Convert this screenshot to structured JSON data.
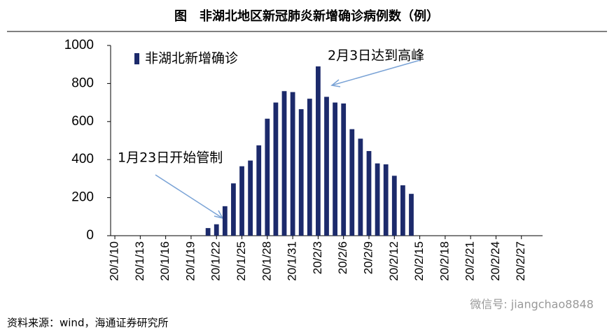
{
  "chart_data": {
    "type": "bar",
    "title": "图　非湖北地区新冠肺炎新增确诊病例数（例）",
    "categories": [
      "20/1/10",
      null,
      null,
      "20/1/13",
      null,
      null,
      "20/1/16",
      null,
      null,
      "20/1/19",
      null,
      null,
      "20/1/22",
      null,
      null,
      "20/1/25",
      null,
      null,
      "20/1/28",
      null,
      null,
      "20/1/31",
      null,
      null,
      "20/2/3",
      null,
      null,
      "20/2/6",
      null,
      null,
      "20/2/9",
      null,
      null,
      "20/2/12",
      null,
      null,
      "20/2/15",
      null,
      null,
      "20/2/18",
      null,
      null,
      "20/2/21",
      null,
      null,
      "20/2/24",
      null,
      null,
      "20/2/27",
      null,
      null
    ],
    "series": [
      {
        "name": "非湖北新增确诊",
        "color": "#1c2a6b",
        "values": [
          null,
          null,
          null,
          null,
          null,
          null,
          null,
          null,
          null,
          null,
          null,
          40,
          60,
          155,
          275,
          365,
          395,
          475,
          615,
          700,
          760,
          755,
          665,
          720,
          890,
          730,
          700,
          695,
          560,
          510,
          445,
          380,
          375,
          315,
          265,
          220,
          null,
          null,
          null,
          null,
          null,
          null,
          null,
          null,
          null,
          null,
          null,
          null,
          null,
          null,
          null
        ]
      }
    ],
    "ylim": [
      0,
      1000
    ],
    "yticks": [
      0,
      200,
      400,
      600,
      800,
      1000
    ],
    "annotations": [
      "2月3日达到高峰",
      "1月23日开始管制"
    ],
    "source": "资料来源：wind，海通证券研究所",
    "watermark": "微信号: jiangchao8848"
  }
}
